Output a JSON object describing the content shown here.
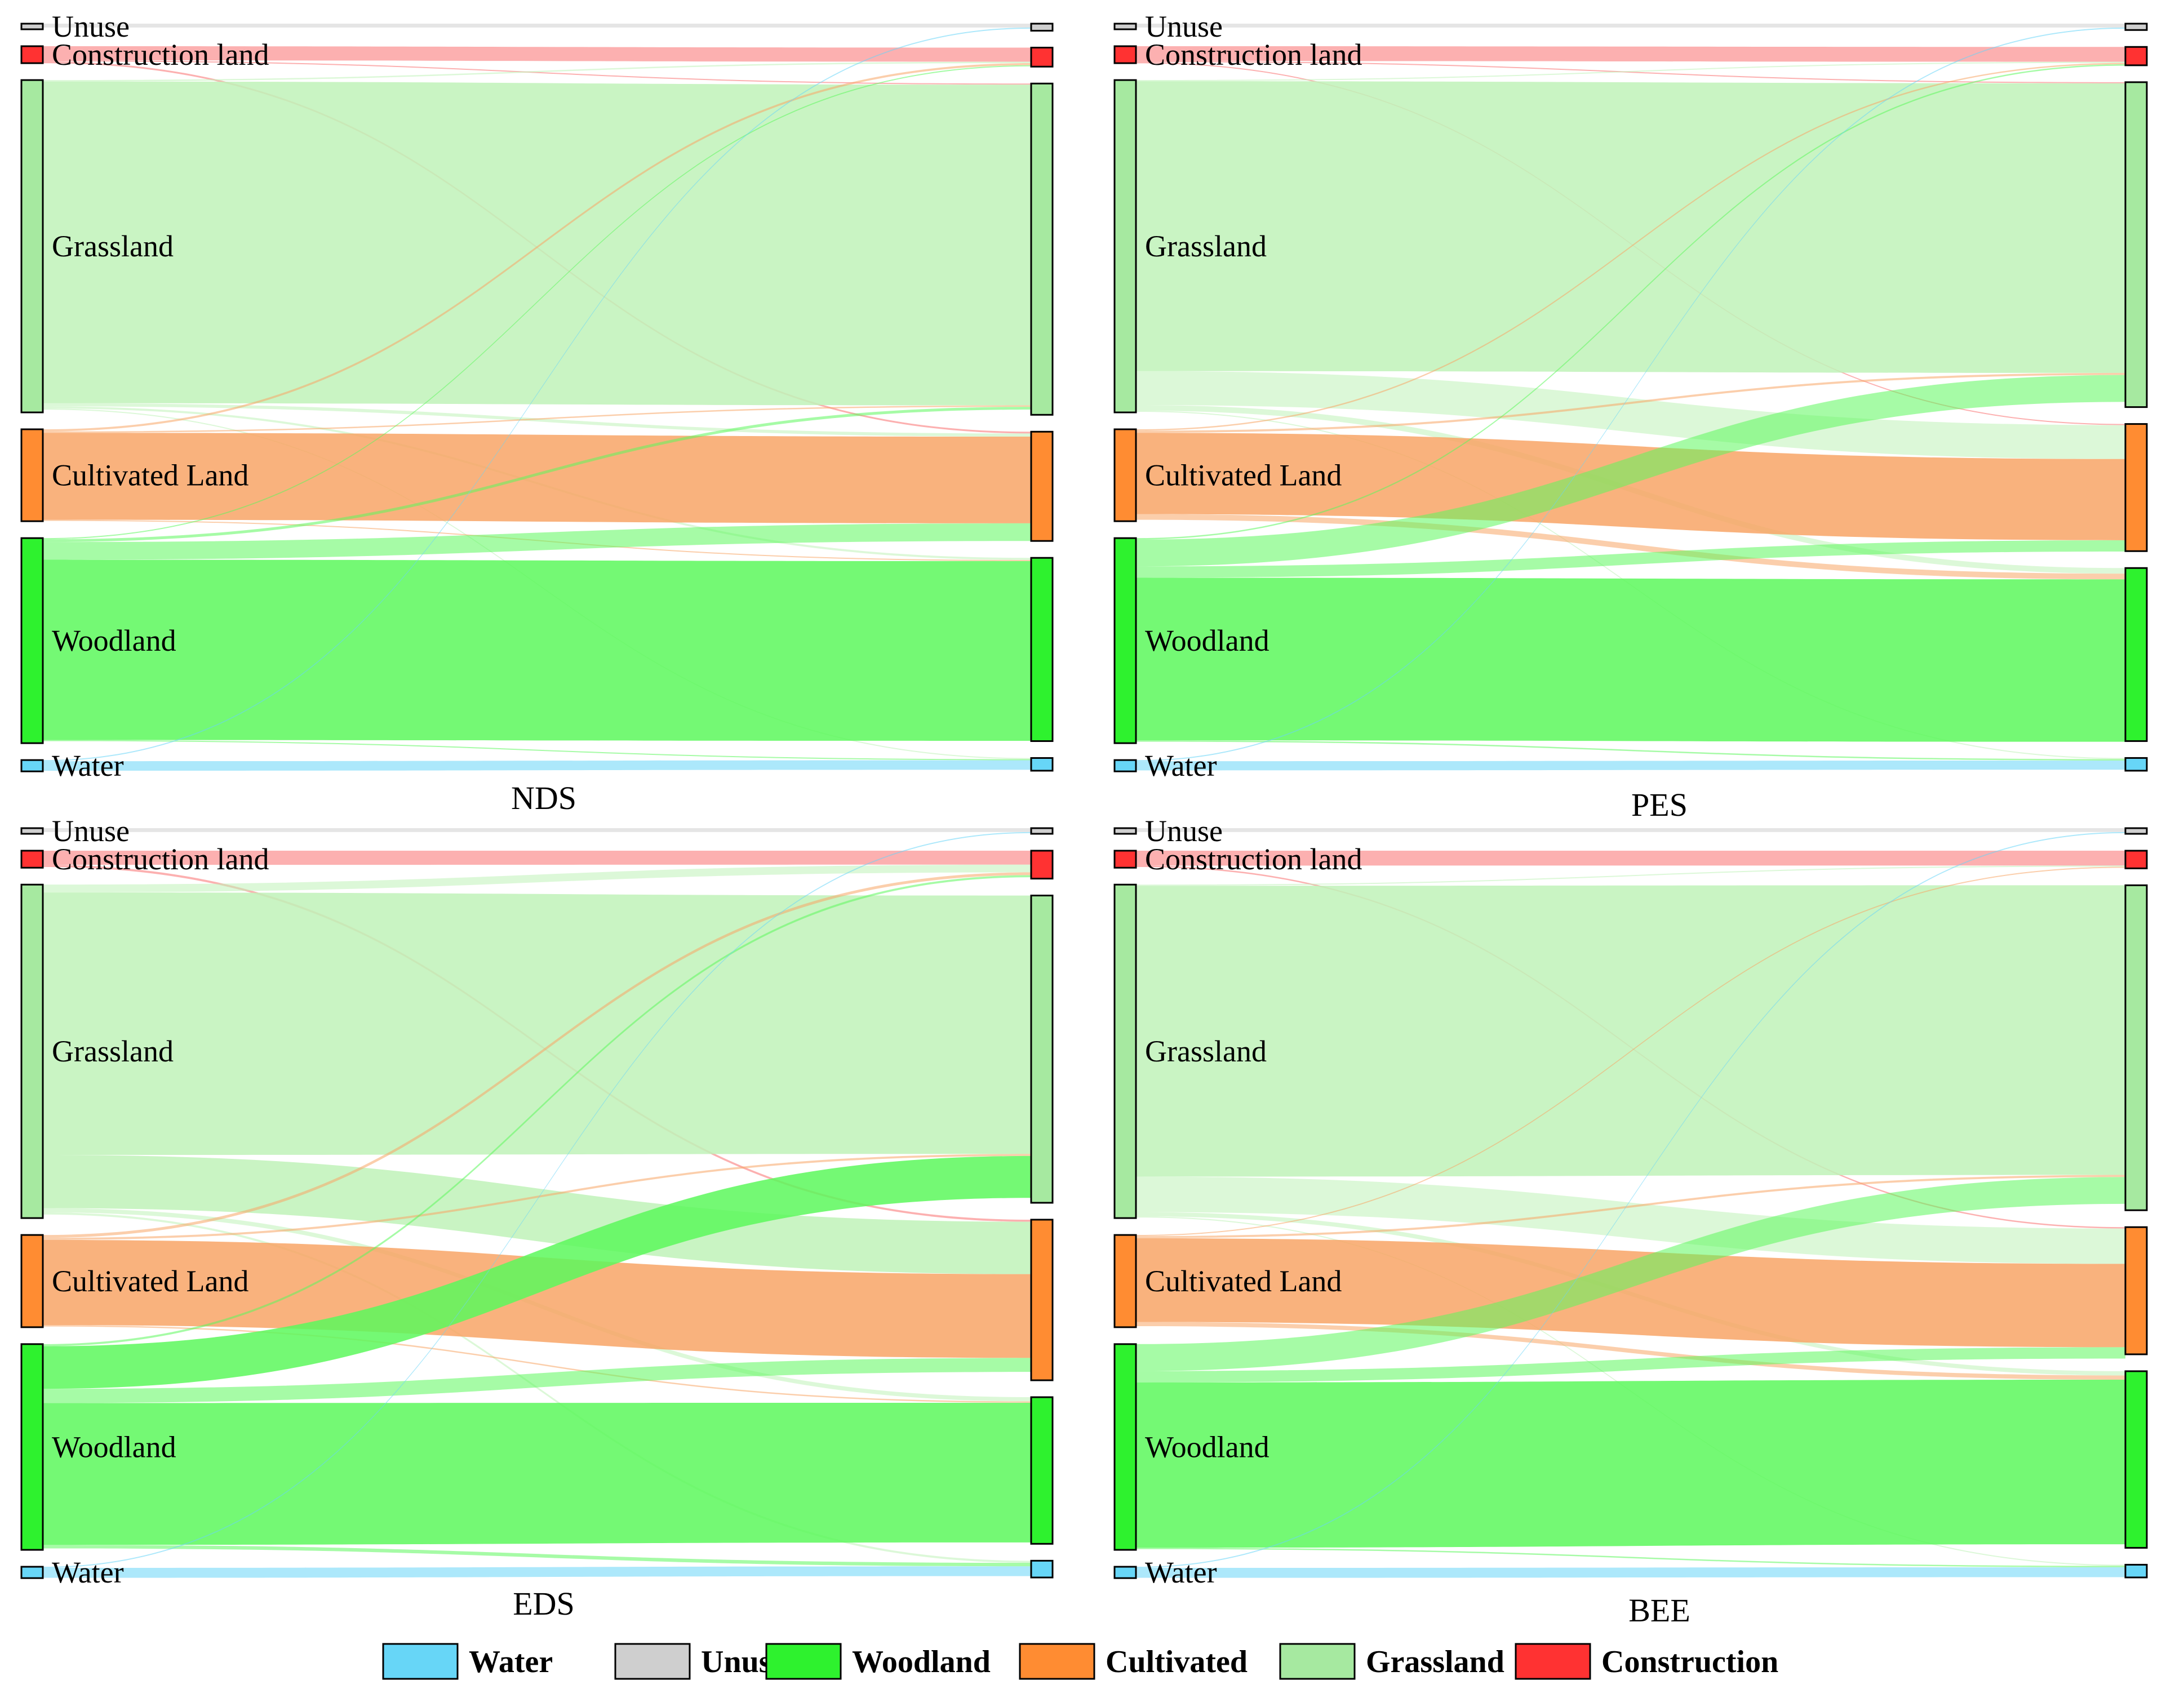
{
  "chart_data": [
    {
      "type": "sankey",
      "title": "NDS",
      "nodes": [
        {
          "id": "Unuse",
          "label": "Unuse",
          "left_value": 0.7,
          "right_value": 1.0
        },
        {
          "id": "Construction",
          "label": "Construction land",
          "left_value": 2.4,
          "right_value": 2.7
        },
        {
          "id": "Grassland",
          "label": "Grassland",
          "left_value": 47.0,
          "right_value": 47.0
        },
        {
          "id": "Cultivated",
          "label": "Cultivated Land",
          "left_value": 13.0,
          "right_value": 15.5
        },
        {
          "id": "Woodland",
          "label": "Woodland",
          "left_value": 29.0,
          "right_value": 26.0
        },
        {
          "id": "Water",
          "label": "Water",
          "left_value": 1.6,
          "right_value": 1.8
        }
      ],
      "links": [
        {
          "source": "Unuse",
          "target": "Unuse",
          "value": 0.55
        },
        {
          "source": "Construction",
          "target": "Construction",
          "value": 2.0
        },
        {
          "source": "Construction",
          "target": "Cultivated",
          "value": 0.25
        },
        {
          "source": "Construction",
          "target": "Grassland",
          "value": 0.1
        },
        {
          "source": "Grassland",
          "target": "Grassland",
          "value": 45.5
        },
        {
          "source": "Grassland",
          "target": "Cultivated",
          "value": 0.45
        },
        {
          "source": "Grassland",
          "target": "Construction",
          "value": 0.2
        },
        {
          "source": "Grassland",
          "target": "Woodland",
          "value": 0.3
        },
        {
          "source": "Grassland",
          "target": "Water",
          "value": 0.1
        },
        {
          "source": "Cultivated",
          "target": "Cultivated",
          "value": 12.3
        },
        {
          "source": "Cultivated",
          "target": "Construction",
          "value": 0.3
        },
        {
          "source": "Cultivated",
          "target": "Grassland",
          "value": 0.2
        },
        {
          "source": "Cultivated",
          "target": "Woodland",
          "value": 0.1
        },
        {
          "source": "Woodland",
          "target": "Cultivated",
          "value": 2.5
        },
        {
          "source": "Woodland",
          "target": "Woodland",
          "value": 25.5
        },
        {
          "source": "Woodland",
          "target": "Grassland",
          "value": 0.4
        },
        {
          "source": "Woodland",
          "target": "Construction",
          "value": 0.15
        },
        {
          "source": "Woodland",
          "target": "Water",
          "value": 0.1
        },
        {
          "source": "Water",
          "target": "Water",
          "value": 1.35
        },
        {
          "source": "Water",
          "target": "Unuse",
          "value": 0.12
        }
      ]
    },
    {
      "type": "sankey",
      "title": "PES",
      "nodes": [
        {
          "id": "Unuse",
          "label": "Unuse",
          "left_value": 0.7,
          "right_value": 0.9
        },
        {
          "id": "Construction",
          "label": "Construction land",
          "left_value": 2.4,
          "right_value": 2.6
        },
        {
          "id": "Grassland",
          "label": "Grassland",
          "left_value": 47.0,
          "right_value": 46.0
        },
        {
          "id": "Cultivated",
          "label": "Cultivated Land",
          "left_value": 13.0,
          "right_value": 18.0
        },
        {
          "id": "Woodland",
          "label": "Woodland",
          "left_value": 29.0,
          "right_value": 24.5
        },
        {
          "id": "Water",
          "label": "Water",
          "left_value": 1.6,
          "right_value": 1.8
        }
      ],
      "links": [
        {
          "source": "Unuse",
          "target": "Unuse",
          "value": 0.55
        },
        {
          "source": "Construction",
          "target": "Construction",
          "value": 2.1
        },
        {
          "source": "Construction",
          "target": "Grassland",
          "value": 0.15
        },
        {
          "source": "Construction",
          "target": "Cultivated",
          "value": 0.1
        },
        {
          "source": "Grassland",
          "target": "Grassland",
          "value": 41.0
        },
        {
          "source": "Grassland",
          "target": "Cultivated",
          "value": 4.8
        },
        {
          "source": "Grassland",
          "target": "Woodland",
          "value": 0.8
        },
        {
          "source": "Grassland",
          "target": "Construction",
          "value": 0.1
        },
        {
          "source": "Grassland",
          "target": "Water",
          "value": 0.1
        },
        {
          "source": "Cultivated",
          "target": "Cultivated",
          "value": 11.5
        },
        {
          "source": "Cultivated",
          "target": "Woodland",
          "value": 0.8
        },
        {
          "source": "Cultivated",
          "target": "Construction",
          "value": 0.2
        },
        {
          "source": "Cultivated",
          "target": "Grassland",
          "value": 0.3
        },
        {
          "source": "Woodland",
          "target": "Grassland",
          "value": 3.8
        },
        {
          "source": "Woodland",
          "target": "Cultivated",
          "value": 1.6
        },
        {
          "source": "Woodland",
          "target": "Woodland",
          "value": 23.0
        },
        {
          "source": "Woodland",
          "target": "Construction",
          "value": 0.2
        },
        {
          "source": "Woodland",
          "target": "Water",
          "value": 0.2
        },
        {
          "source": "Water",
          "target": "Water",
          "value": 1.3
        },
        {
          "source": "Water",
          "target": "Unuse",
          "value": 0.1
        }
      ]
    },
    {
      "type": "sankey",
      "title": "EDS",
      "nodes": [
        {
          "id": "Unuse",
          "label": "Unuse",
          "left_value": 0.7,
          "right_value": 0.8
        },
        {
          "id": "Construction",
          "label": "Construction land",
          "left_value": 2.4,
          "right_value": 4.0
        },
        {
          "id": "Grassland",
          "label": "Grassland",
          "left_value": 47.0,
          "right_value": 44.0
        },
        {
          "id": "Cultivated",
          "label": "Cultivated Land",
          "left_value": 13.0,
          "right_value": 23.0
        },
        {
          "id": "Woodland",
          "label": "Woodland",
          "left_value": 29.0,
          "right_value": 21.0
        },
        {
          "id": "Water",
          "label": "Water",
          "left_value": 1.6,
          "right_value": 2.4
        }
      ],
      "links": [
        {
          "source": "Unuse",
          "target": "Unuse",
          "value": 0.55
        },
        {
          "source": "Construction",
          "target": "Construction",
          "value": 2.0
        },
        {
          "source": "Construction",
          "target": "Cultivated",
          "value": 0.3
        },
        {
          "source": "Grassland",
          "target": "Construction",
          "value": 1.1
        },
        {
          "source": "Grassland",
          "target": "Grassland",
          "value": 37.0
        },
        {
          "source": "Grassland",
          "target": "Cultivated",
          "value": 7.5
        },
        {
          "source": "Grassland",
          "target": "Woodland",
          "value": 0.6
        },
        {
          "source": "Grassland",
          "target": "Water",
          "value": 0.3
        },
        {
          "source": "Cultivated",
          "target": "Construction",
          "value": 0.4
        },
        {
          "source": "Cultivated",
          "target": "Cultivated",
          "value": 12.0
        },
        {
          "source": "Cultivated",
          "target": "Grassland",
          "value": 0.3
        },
        {
          "source": "Cultivated",
          "target": "Woodland",
          "value": 0.2
        },
        {
          "source": "Woodland",
          "target": "Grassland",
          "value": 6.0
        },
        {
          "source": "Woodland",
          "target": "Cultivated",
          "value": 2.0
        },
        {
          "source": "Woodland",
          "target": "Woodland",
          "value": 20.0
        },
        {
          "source": "Woodland",
          "target": "Construction",
          "value": 0.3
        },
        {
          "source": "Woodland",
          "target": "Water",
          "value": 0.5
        },
        {
          "source": "Water",
          "target": "Water",
          "value": 1.4
        },
        {
          "source": "Water",
          "target": "Unuse",
          "value": 0.1
        }
      ]
    },
    {
      "type": "sankey",
      "title": "BEE",
      "nodes": [
        {
          "id": "Unuse",
          "label": "Unuse",
          "left_value": 0.7,
          "right_value": 0.8
        },
        {
          "id": "Construction",
          "label": "Construction land",
          "left_value": 2.4,
          "right_value": 2.5
        },
        {
          "id": "Grassland",
          "label": "Grassland",
          "left_value": 47.0,
          "right_value": 46.0
        },
        {
          "id": "Cultivated",
          "label": "Cultivated Land",
          "left_value": 13.0,
          "right_value": 18.0
        },
        {
          "id": "Woodland",
          "label": "Woodland",
          "left_value": 29.0,
          "right_value": 25.0
        },
        {
          "id": "Water",
          "label": "Water",
          "left_value": 1.6,
          "right_value": 1.8
        }
      ],
      "links": [
        {
          "source": "Unuse",
          "target": "Unuse",
          "value": 0.55
        },
        {
          "source": "Construction",
          "target": "Construction",
          "value": 2.1
        },
        {
          "source": "Construction",
          "target": "Cultivated",
          "value": 0.2
        },
        {
          "source": "Grassland",
          "target": "Grassland",
          "value": 41.0
        },
        {
          "source": "Grassland",
          "target": "Cultivated",
          "value": 5.0
        },
        {
          "source": "Grassland",
          "target": "Woodland",
          "value": 0.6
        },
        {
          "source": "Grassland",
          "target": "Construction",
          "value": 0.15
        },
        {
          "source": "Grassland",
          "target": "Water",
          "value": 0.1
        },
        {
          "source": "Cultivated",
          "target": "Cultivated",
          "value": 11.8
        },
        {
          "source": "Cultivated",
          "target": "Woodland",
          "value": 0.6
        },
        {
          "source": "Cultivated",
          "target": "Grassland",
          "value": 0.3
        },
        {
          "source": "Cultivated",
          "target": "Construction",
          "value": 0.1
        },
        {
          "source": "Woodland",
          "target": "Grassland",
          "value": 3.8
        },
        {
          "source": "Woodland",
          "target": "Cultivated",
          "value": 1.6
        },
        {
          "source": "Woodland",
          "target": "Woodland",
          "value": 23.3
        },
        {
          "source": "Woodland",
          "target": "Water",
          "value": 0.2
        },
        {
          "source": "Water",
          "target": "Water",
          "value": 1.4
        },
        {
          "source": "Water",
          "target": "Unuse",
          "value": 0.1
        }
      ]
    }
  ],
  "legend": {
    "items": [
      {
        "key": "Water",
        "label": "Water"
      },
      {
        "key": "Unuse",
        "label": "Unuse"
      },
      {
        "key": "Woodland",
        "label": "Woodland"
      },
      {
        "key": "Cultivated",
        "label": "Cultivated"
      },
      {
        "key": "Grassland",
        "label": "Grassland"
      },
      {
        "key": "Construction",
        "label": "Construction"
      }
    ]
  },
  "colors": {
    "Unuse": {
      "node": "#cfcfcf",
      "link": "#cfcfcf"
    },
    "Construction": {
      "node": "#ff3232",
      "link": "#f97070"
    },
    "Grassland": {
      "node": "#a6e9a0",
      "link": "#bff2b8"
    },
    "Cultivated": {
      "node": "#ff8c32",
      "link": "#f8a566"
    },
    "Woodland": {
      "node": "#2ef22e",
      "link": "#5cf85c"
    },
    "Water": {
      "node": "#67d6f7",
      "link": "#67d6f7"
    }
  }
}
